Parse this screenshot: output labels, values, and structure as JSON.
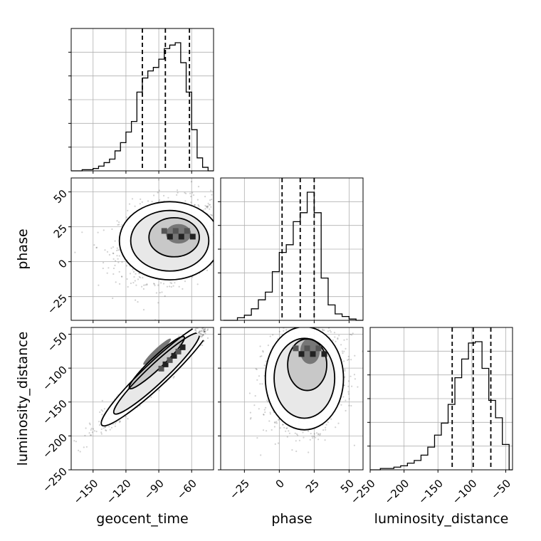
{
  "chart_data": {
    "type": "corner",
    "parameters": [
      "geocent_time",
      "phase",
      "luminosity_distance"
    ],
    "ranges": {
      "geocent_time": [
        -170,
        -40
      ],
      "phase": [
        -42,
        60
      ],
      "luminosity_distance": [
        -250,
        -40
      ]
    },
    "ticks": {
      "geocent_time": [
        -150,
        -120,
        -90,
        -60
      ],
      "phase": [
        -25,
        0,
        25,
        50
      ],
      "luminosity_distance": [
        -250,
        -200,
        -150,
        -100,
        -50
      ]
    },
    "tick_labels": {
      "geocent_time": [
        "−150",
        "−120",
        "−90",
        "−60"
      ],
      "phase": [
        "−25",
        "0",
        "25",
        "50"
      ],
      "luminosity_distance": [
        "−250",
        "−200",
        "−150",
        "−100",
        "−50"
      ]
    },
    "quantiles": {
      "geocent_time": [
        -105,
        -84,
        -62
      ],
      "phase": [
        2,
        15,
        25
      ],
      "luminosity_distance": [
        -129,
        -98,
        -72
      ]
    },
    "histograms": {
      "geocent_time": {
        "edges": [
          -170,
          -160,
          -150,
          -145,
          -140,
          -135,
          -130,
          -125,
          -120,
          -115,
          -110,
          -105,
          -100,
          -95,
          -90,
          -85,
          -80,
          -75,
          -70,
          -65,
          -60,
          -55,
          -50,
          -45,
          -40
        ],
        "counts": [
          0,
          1,
          2,
          4,
          7,
          10,
          17,
          24,
          33,
          42,
          67,
          79,
          85,
          88,
          95,
          104,
          107,
          109,
          92,
          67,
          35,
          11,
          3,
          0
        ]
      },
      "phase": {
        "edges": [
          -40,
          -30,
          -25,
          -20,
          -15,
          -10,
          -5,
          0,
          5,
          10,
          15,
          20,
          25,
          30,
          35,
          40,
          45,
          50,
          55,
          60
        ],
        "counts": [
          0,
          2,
          4,
          9,
          16,
          22,
          38,
          53,
          59,
          77,
          84,
          100,
          84,
          33,
          12,
          5,
          3,
          1,
          0
        ]
      },
      "luminosity_distance": {
        "edges": [
          -250,
          -235,
          -225,
          -215,
          -205,
          -195,
          -185,
          -175,
          -165,
          -155,
          -145,
          -135,
          -125,
          -115,
          -105,
          -95,
          -85,
          -75,
          -65,
          -55,
          -45,
          -40
        ],
        "counts": [
          0,
          1,
          1,
          2,
          3,
          5,
          7,
          11,
          17,
          26,
          35,
          49,
          69,
          83,
          95,
          96,
          76,
          52,
          39,
          19,
          0
        ]
      }
    },
    "joint": {
      "phase_vs_geocent_time": {
        "center": [
          -80,
          15
        ],
        "spread": [
          23,
          14
        ],
        "corr": 0.2,
        "mode": [
          -72,
          20
        ]
      },
      "luminosity_distance_vs_geocent_time": {
        "center": [
          -92,
          -108
        ],
        "spread": [
          25,
          38
        ],
        "corr": 0.97,
        "mode": [
          -78,
          -85
        ]
      },
      "luminosity_distance_vs_phase": {
        "center": [
          18,
          -115
        ],
        "spread": [
          14,
          38
        ],
        "corr": 0.15,
        "mode": [
          22,
          -75
        ]
      }
    },
    "xlabels": [
      "geocent_time",
      "phase",
      "luminosity_distance"
    ],
    "ylabels": [
      "",
      "phase",
      "luminosity_distance"
    ],
    "grid": true
  }
}
